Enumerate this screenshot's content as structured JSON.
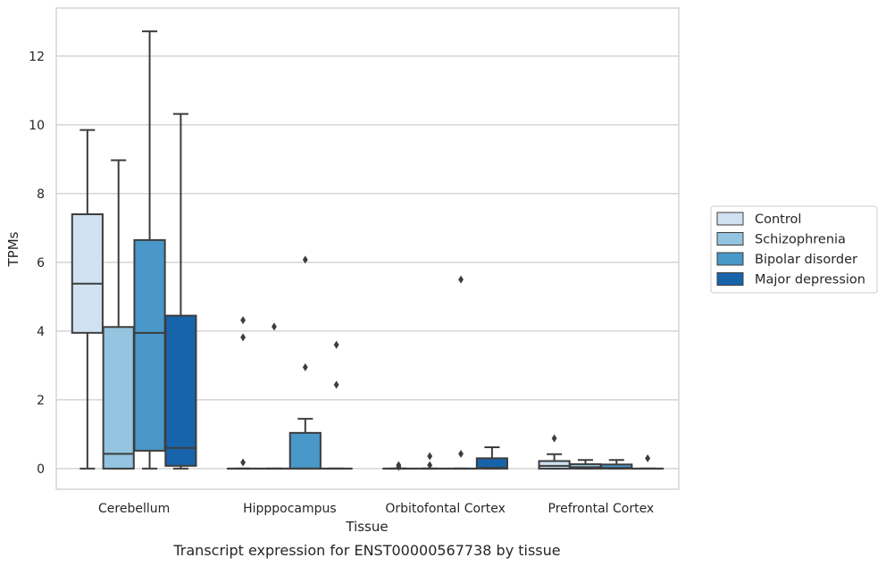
{
  "caption": "Transcript expression for ENST00000567738 by tissue",
  "chart_data": {
    "type": "box",
    "xlabel": "Tissue",
    "ylabel": "TPMs",
    "ylim": [
      -0.6,
      13.4
    ],
    "yticks": [
      0,
      2,
      4,
      6,
      8,
      10,
      12
    ],
    "grid": true,
    "legend_position": "right",
    "categories": [
      "Cerebellum",
      "Hipppocampus",
      "Orbitofontal Cortex",
      "Prefrontal Cortex"
    ],
    "series": [
      {
        "name": "Control",
        "color": "#d0e1f2",
        "boxes": [
          {
            "whislo": 0,
            "q1": 3.95,
            "med": 5.38,
            "q3": 7.4,
            "whishi": 9.85,
            "fliers": []
          },
          {
            "whislo": 0,
            "q1": 0,
            "med": 0,
            "q3": 0,
            "whishi": 0,
            "fliers": [
              0.18,
              3.82,
              4.32
            ]
          },
          {
            "whislo": 0,
            "q1": 0,
            "med": 0,
            "q3": 0,
            "whishi": 0,
            "fliers": [
              0.05,
              0.1
            ]
          },
          {
            "whislo": 0,
            "q1": 0,
            "med": 0.08,
            "q3": 0.22,
            "whishi": 0.42,
            "fliers": [
              0.88
            ]
          }
        ]
      },
      {
        "name": "Schizophrenia",
        "color": "#94c4df",
        "boxes": [
          {
            "whislo": 0,
            "q1": 0,
            "med": 0.43,
            "q3": 4.12,
            "whishi": 8.97,
            "fliers": []
          },
          {
            "whislo": 0,
            "q1": 0,
            "med": 0,
            "q3": 0,
            "whishi": 0,
            "fliers": [
              4.13
            ]
          },
          {
            "whislo": 0,
            "q1": 0,
            "med": 0,
            "q3": 0,
            "whishi": 0,
            "fliers": [
              0.1,
              0.36
            ]
          },
          {
            "whislo": 0,
            "q1": 0,
            "med": 0.04,
            "q3": 0.13,
            "whishi": 0.25,
            "fliers": []
          }
        ]
      },
      {
        "name": "Bipolar disorder",
        "color": "#4a98c9",
        "boxes": [
          {
            "whislo": 0,
            "q1": 0.52,
            "med": 3.95,
            "q3": 6.65,
            "whishi": 12.72,
            "fliers": []
          },
          {
            "whislo": 0,
            "q1": 0,
            "med": 0,
            "q3": 1.04,
            "whishi": 1.45,
            "fliers": [
              2.95,
              6.08
            ]
          },
          {
            "whislo": 0,
            "q1": 0,
            "med": 0,
            "q3": 0,
            "whishi": 0,
            "fliers": [
              0.43,
              5.5
            ]
          },
          {
            "whislo": 0,
            "q1": 0,
            "med": 0.02,
            "q3": 0.12,
            "whishi": 0.25,
            "fliers": []
          }
        ]
      },
      {
        "name": "Major depression",
        "color": "#1764ab",
        "boxes": [
          {
            "whislo": 0,
            "q1": 0.08,
            "med": 0.6,
            "q3": 4.45,
            "whishi": 10.32,
            "fliers": []
          },
          {
            "whislo": 0,
            "q1": 0,
            "med": 0,
            "q3": 0,
            "whishi": 0,
            "fliers": [
              2.44,
              3.6
            ]
          },
          {
            "whislo": 0,
            "q1": 0,
            "med": 0.02,
            "q3": 0.3,
            "whishi": 0.62,
            "fliers": []
          },
          {
            "whislo": 0,
            "q1": 0,
            "med": 0,
            "q3": 0,
            "whishi": 0,
            "fliers": [
              0.3
            ]
          }
        ]
      }
    ]
  }
}
